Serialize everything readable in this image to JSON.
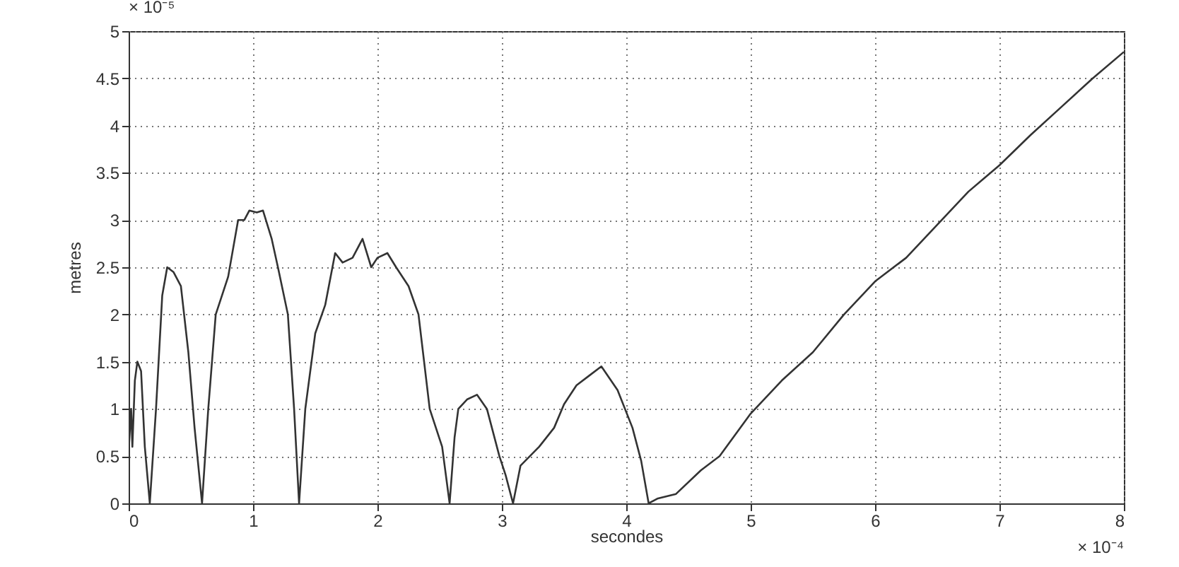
{
  "chart_data": {
    "type": "line",
    "xlabel": "secondes",
    "ylabel": "metres",
    "annotations": [
      "× 10⁻⁵",
      "× 10⁻⁴"
    ],
    "xlim": [
      0,
      8
    ],
    "xticks": [
      0,
      1,
      2,
      3,
      4,
      5,
      6,
      7,
      8
    ],
    "ylim": [
      0,
      5
    ],
    "yticks": [
      0,
      0.5,
      1,
      1.5,
      2,
      2.5,
      3,
      3.5,
      4,
      4.5,
      5
    ],
    "grid": true,
    "line_style": "solid",
    "marker": "none",
    "series": [
      {
        "color": "#333333",
        "x": [
          0,
          0.02,
          0.03,
          0.05,
          0.07,
          0.1,
          0.13,
          0.17,
          0.22,
          0.27,
          0.31,
          0.36,
          0.42,
          0.48,
          0.53,
          0.59,
          0.64,
          0.7,
          0.8,
          0.88,
          0.93,
          0.97,
          1.03,
          1.08,
          1.15,
          1.2,
          1.28,
          1.33,
          1.37,
          1.42,
          1.5,
          1.58,
          1.66,
          1.72,
          1.8,
          1.88,
          1.95,
          2.0,
          2.08,
          2.15,
          2.25,
          2.33,
          2.42,
          2.52,
          2.58,
          2.62,
          2.65,
          2.72,
          2.8,
          2.88,
          2.98,
          3.03,
          3.09,
          3.15,
          3.3,
          3.42,
          3.5,
          3.6,
          3.7,
          3.8,
          3.93,
          4.05,
          4.12,
          4.18,
          4.25,
          4.4,
          4.6,
          4.75,
          5.0,
          5.25,
          5.5,
          5.75,
          6.0,
          6.25,
          6.5,
          6.75,
          7.0,
          7.25,
          7.5,
          7.75,
          8.0
        ],
        "values": [
          0.55,
          1.0,
          0.6,
          1.3,
          1.5,
          1.4,
          0.6,
          0,
          1.0,
          2.2,
          2.5,
          2.45,
          2.3,
          1.6,
          0.8,
          0,
          1.0,
          2.0,
          2.4,
          3.0,
          3.0,
          3.1,
          3.08,
          3.1,
          2.8,
          2.5,
          2.0,
          1.0,
          0,
          1.0,
          1.8,
          2.1,
          2.65,
          2.55,
          2.6,
          2.8,
          2.5,
          2.6,
          2.65,
          2.5,
          2.3,
          2.0,
          1.0,
          0.6,
          0,
          0.7,
          1.0,
          1.1,
          1.15,
          1.0,
          0.5,
          0.3,
          0,
          0.4,
          0.6,
          0.8,
          1.05,
          1.25,
          1.35,
          1.45,
          1.2,
          0.8,
          0.45,
          0,
          0.05,
          0.1,
          0.35,
          0.5,
          0.95,
          1.3,
          1.6,
          2.0,
          2.35,
          2.6,
          2.95,
          3.3,
          3.58,
          3.9,
          4.2,
          4.5,
          4.78
        ]
      }
    ]
  }
}
